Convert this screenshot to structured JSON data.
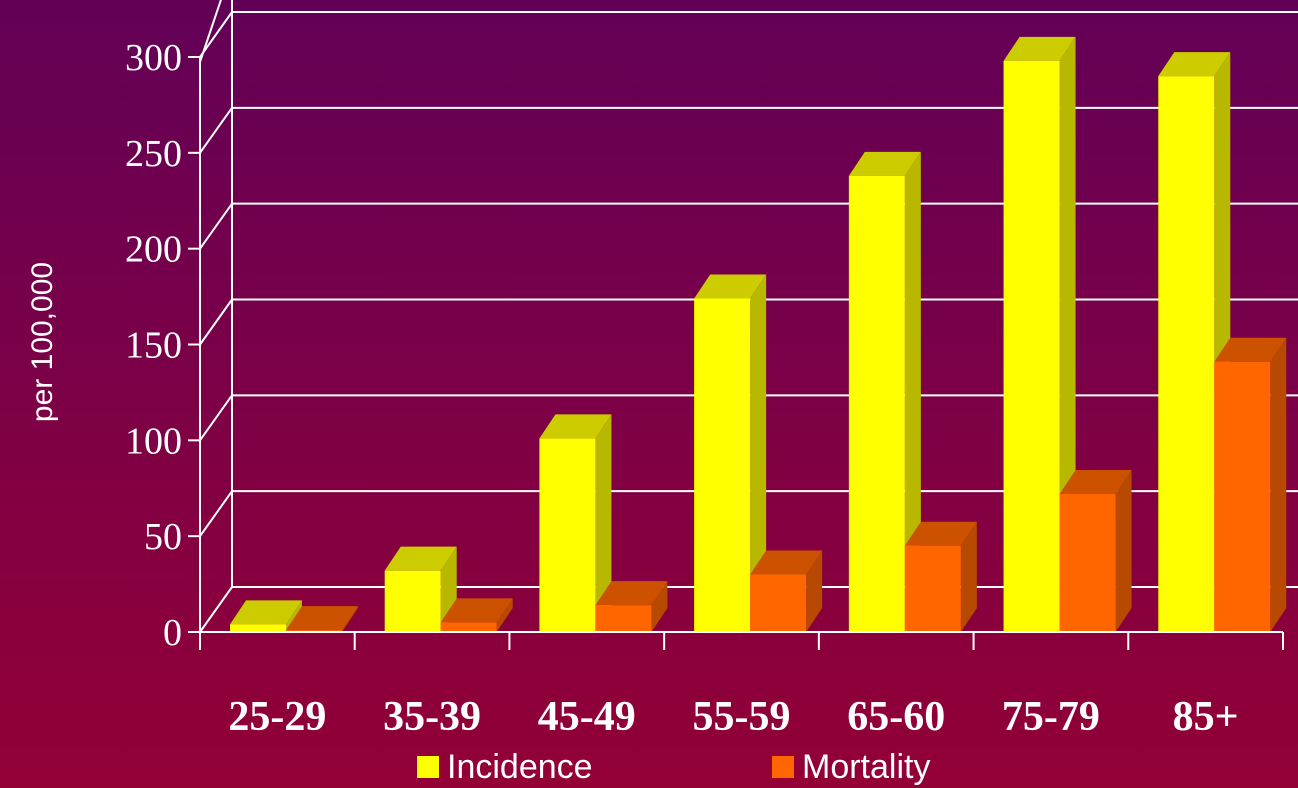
{
  "chart_data": {
    "type": "bar",
    "style": "3d-clustered",
    "categories": [
      "25-29",
      "35-39",
      "45-49",
      "55-59",
      "65-60",
      "75-79",
      "85+"
    ],
    "series": [
      {
        "name": "Incidence",
        "color": "#ffff00",
        "values": [
          4,
          32,
          101,
          174,
          238,
          298,
          290
        ]
      },
      {
        "name": "Mortality",
        "color": "#ff6600",
        "values": [
          1,
          5,
          14,
          30,
          45,
          72,
          141
        ]
      }
    ],
    "yticks": [
      0,
      50,
      100,
      150,
      200,
      250,
      300
    ],
    "ylim": [
      0,
      300
    ],
    "ylabel": "per 100,000",
    "xlabel": "",
    "title": "",
    "grid": true,
    "legend": "bottom-center"
  },
  "colors": {
    "background_top": "#620056",
    "background_bottom": "#930036",
    "axis": "#ffffff",
    "text": "#ffffff"
  }
}
